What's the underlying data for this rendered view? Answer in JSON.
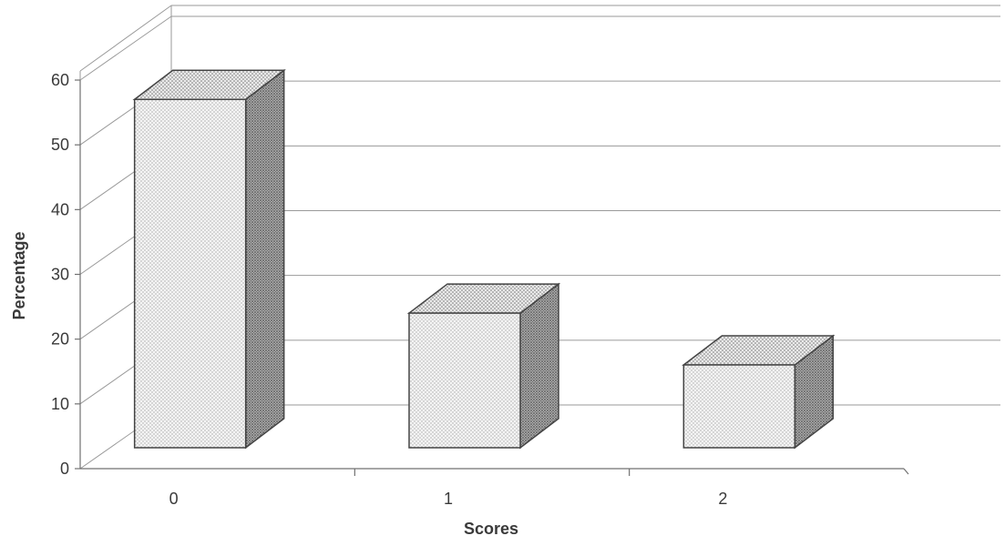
{
  "chart_data": {
    "type": "bar",
    "style": "3d-column",
    "categories": [
      "0",
      "1",
      "2"
    ],
    "values": [
      58,
      25,
      17
    ],
    "xlabel": "Scores",
    "ylabel": "Percentage",
    "ylim": [
      0,
      60
    ],
    "yticks": [
      "0",
      "10",
      "20",
      "30",
      "40",
      "50",
      "60"
    ],
    "grid": true,
    "legend": "none",
    "colors": {
      "bar_front": "#f1f1f1",
      "bar_top": "#e6e6e6",
      "bar_side": "#9a9a9a",
      "grid": "#9a9a9a"
    }
  }
}
